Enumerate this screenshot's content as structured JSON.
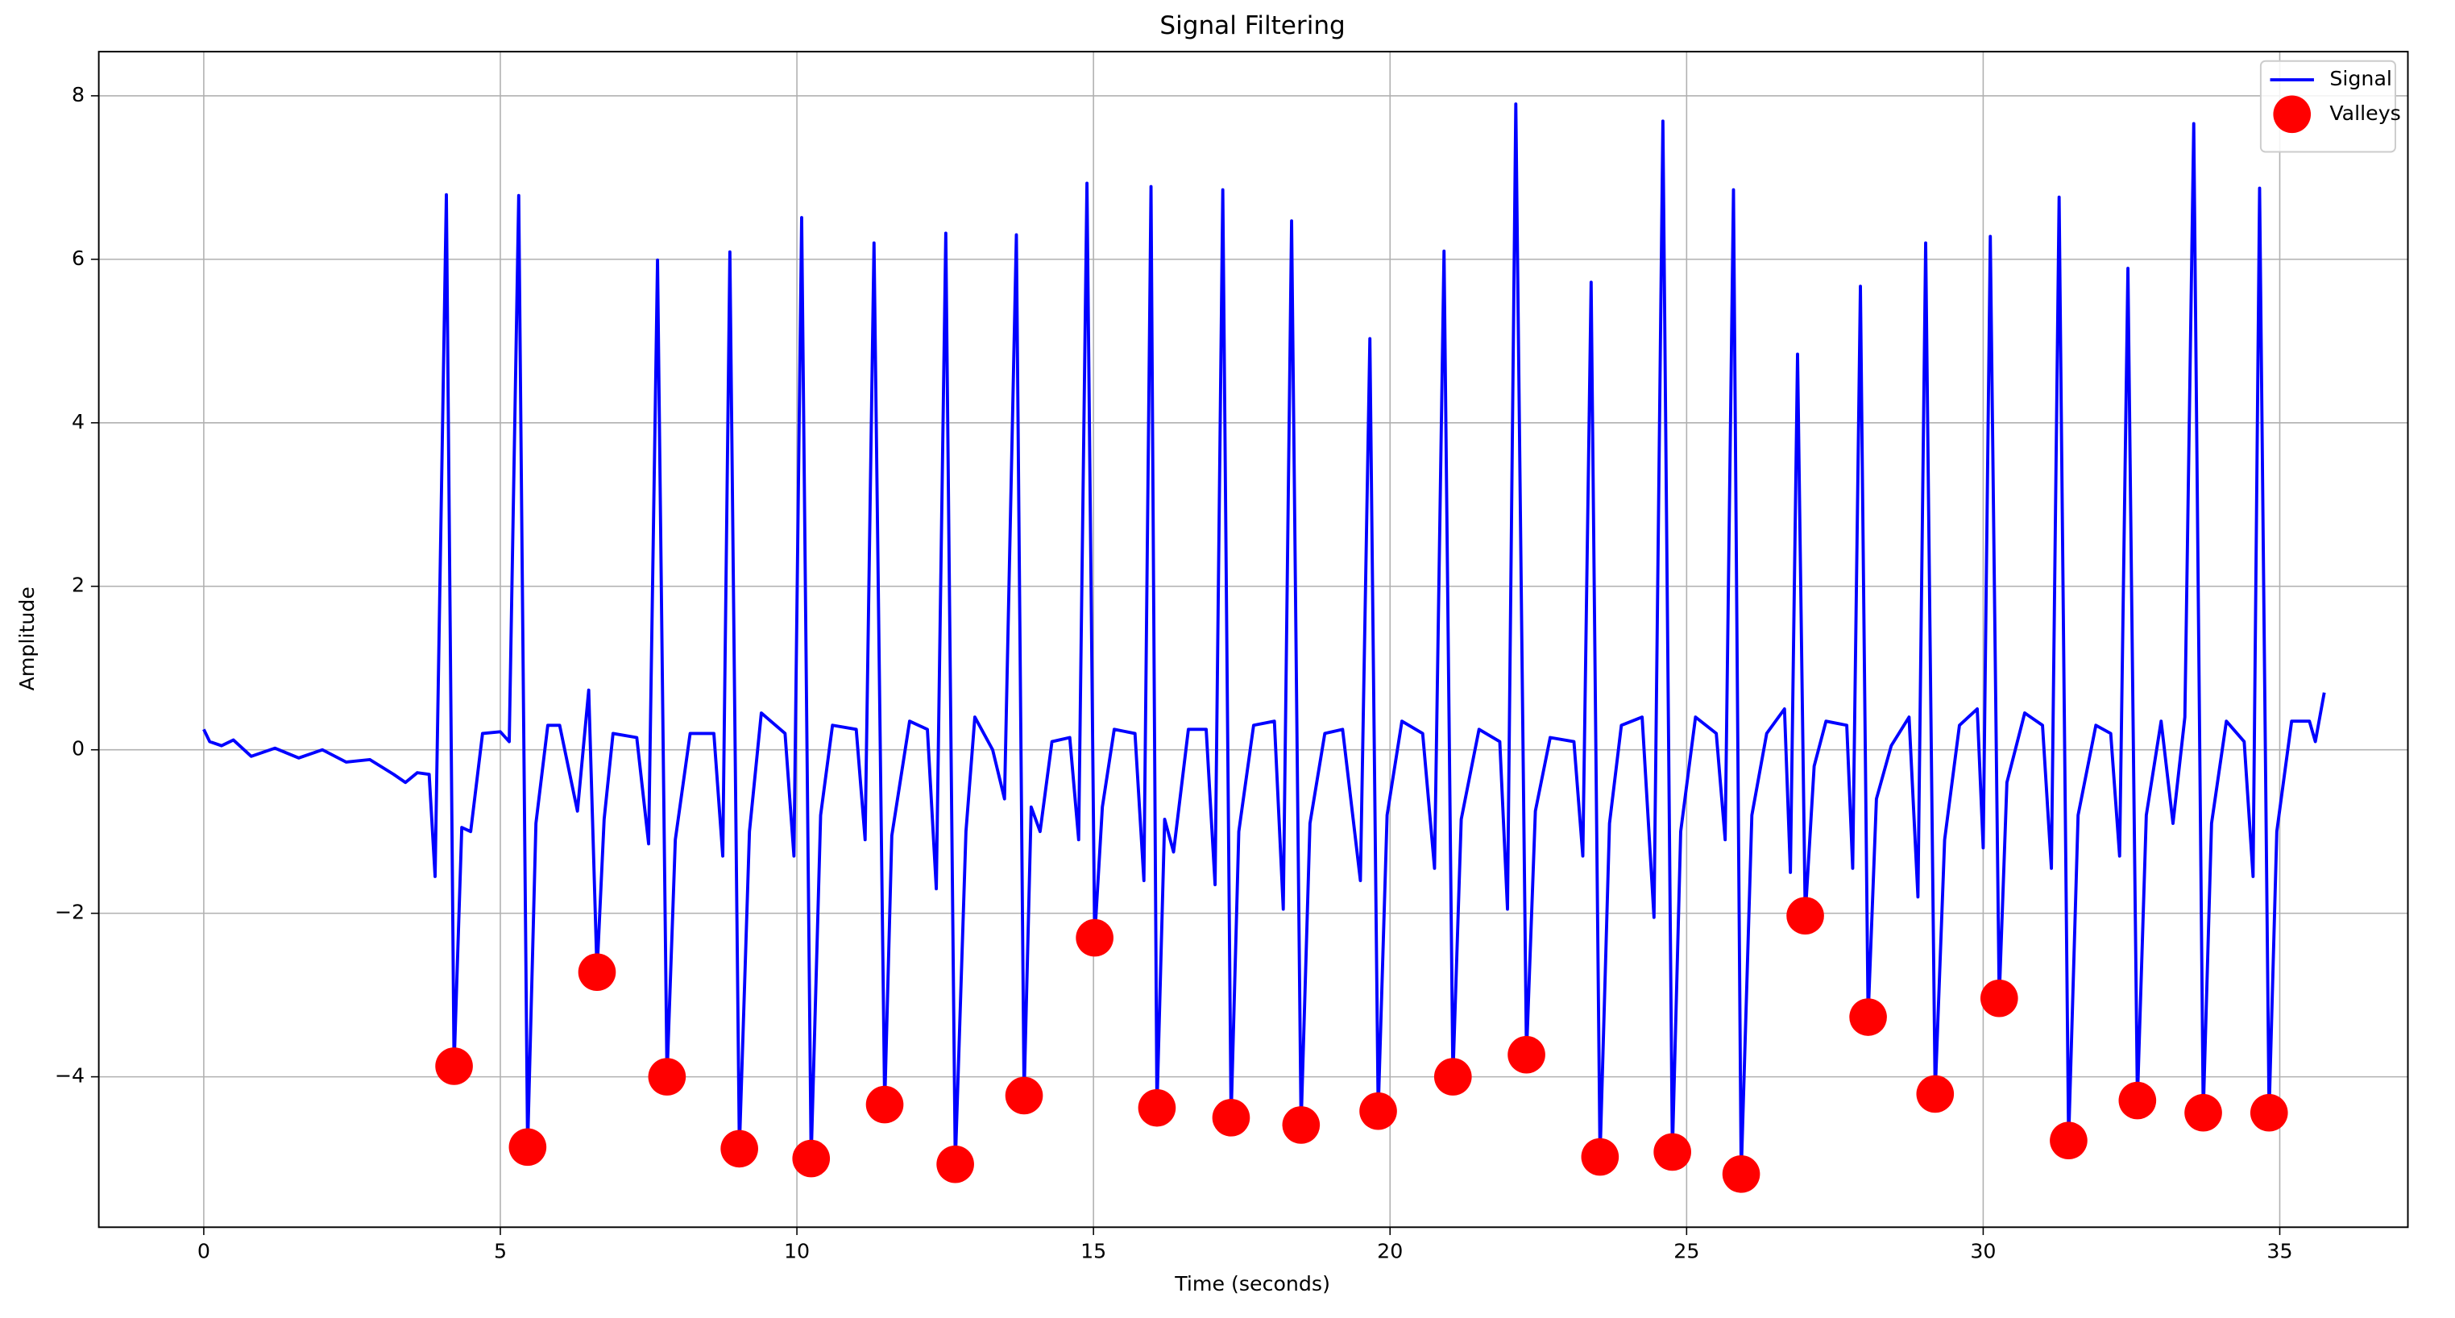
{
  "chart_data": {
    "type": "line",
    "title": "Signal Filtering",
    "x_label": "Time (seconds)",
    "y_label": "Amplitude",
    "xlim": [
      -1.77,
      37.16
    ],
    "ylim": [
      -5.84,
      8.54
    ],
    "xticks": [
      0,
      5,
      10,
      15,
      20,
      25,
      30,
      35
    ],
    "yticks": [
      {
        "value": -4,
        "label": "−4"
      },
      {
        "value": -2,
        "label": "−2"
      },
      0,
      2,
      4,
      6,
      8
    ],
    "grid": true,
    "legend": "upper right",
    "series": [
      {
        "name": "Signal",
        "type": "line",
        "color": "#0000ff",
        "x": [
          0,
          0.1,
          0.3,
          0.5,
          0.8,
          1.2,
          1.6,
          2.0,
          2.4,
          2.8,
          3.2,
          3.4,
          3.6,
          3.8,
          3.9,
          4.09,
          4.22,
          4.35,
          4.5,
          4.7,
          5.0,
          5.15,
          5.31,
          5.46,
          5.6,
          5.8,
          6.0,
          6.3,
          6.49,
          6.63,
          6.75,
          6.9,
          7.3,
          7.5,
          7.65,
          7.81,
          7.95,
          8.2,
          8.6,
          8.75,
          8.87,
          9.03,
          9.2,
          9.4,
          9.8,
          9.95,
          10.08,
          10.24,
          10.4,
          10.6,
          11.0,
          11.15,
          11.3,
          11.48,
          11.6,
          11.9,
          12.2,
          12.35,
          12.51,
          12.67,
          12.85,
          13.0,
          13.3,
          13.5,
          13.7,
          13.83,
          13.95,
          14.1,
          14.3,
          14.6,
          14.75,
          14.89,
          15.02,
          15.15,
          15.35,
          15.7,
          15.85,
          15.97,
          16.07,
          16.2,
          16.35,
          16.6,
          16.9,
          17.05,
          17.18,
          17.32,
          17.45,
          17.7,
          18.05,
          18.2,
          18.34,
          18.5,
          18.65,
          18.9,
          19.2,
          19.5,
          19.66,
          19.8,
          19.95,
          20.2,
          20.55,
          20.75,
          20.91,
          21.06,
          21.2,
          21.5,
          21.85,
          21.98,
          22.12,
          22.3,
          22.45,
          22.7,
          23.1,
          23.25,
          23.39,
          23.54,
          23.7,
          23.9,
          24.25,
          24.45,
          24.6,
          24.76,
          24.9,
          25.15,
          25.5,
          25.65,
          25.79,
          25.92,
          26.1,
          26.35,
          26.65,
          26.75,
          26.87,
          27.0,
          27.15,
          27.35,
          27.7,
          27.8,
          27.93,
          28.06,
          28.2,
          28.45,
          28.75,
          28.9,
          29.03,
          29.19,
          29.35,
          29.6,
          29.9,
          30.0,
          30.12,
          30.27,
          30.4,
          30.7,
          31.0,
          31.15,
          31.28,
          31.44,
          31.6,
          31.9,
          32.15,
          32.3,
          32.44,
          32.6,
          32.75,
          33.0,
          33.2,
          33.4,
          33.55,
          33.71,
          33.85,
          34.1,
          34.4,
          34.55,
          34.66,
          34.82,
          34.95,
          35.2,
          35.5,
          35.6,
          35.75
        ],
        "values": [
          0.25,
          0.1,
          0.05,
          0.12,
          -0.08,
          0.02,
          -0.1,
          0.0,
          -0.15,
          -0.12,
          -0.3,
          -0.4,
          -0.28,
          -0.3,
          -1.55,
          6.79,
          -3.87,
          -0.95,
          -1.0,
          0.2,
          0.22,
          0.1,
          6.78,
          -4.86,
          -0.9,
          0.3,
          0.3,
          -0.75,
          0.73,
          -2.72,
          -0.85,
          0.2,
          0.15,
          -1.15,
          5.99,
          -4.0,
          -1.1,
          0.2,
          0.2,
          -1.3,
          6.09,
          -4.88,
          -1.0,
          0.45,
          0.2,
          -1.3,
          6.51,
          -5.0,
          -0.8,
          0.3,
          0.25,
          -1.1,
          6.2,
          -4.34,
          -1.05,
          0.35,
          0.25,
          -1.7,
          6.32,
          -5.07,
          -1.0,
          0.4,
          0.0,
          -0.6,
          6.3,
          -4.23,
          -0.7,
          -1.0,
          0.1,
          0.15,
          -1.1,
          6.93,
          -2.3,
          -0.7,
          0.25,
          0.2,
          -1.6,
          6.89,
          -4.38,
          -0.85,
          -1.25,
          0.25,
          0.25,
          -1.65,
          6.85,
          -4.5,
          -1.0,
          0.3,
          0.35,
          -1.95,
          6.47,
          -4.59,
          -0.9,
          0.2,
          0.25,
          -1.6,
          5.03,
          -4.42,
          -0.8,
          0.35,
          0.2,
          -1.45,
          6.1,
          -4.0,
          -0.85,
          0.25,
          0.1,
          -1.95,
          7.9,
          -3.73,
          -0.75,
          0.15,
          0.1,
          -1.3,
          5.72,
          -4.98,
          -0.9,
          0.3,
          0.4,
          -2.05,
          7.69,
          -4.92,
          -1.0,
          0.4,
          0.2,
          -1.1,
          6.85,
          -5.19,
          -0.8,
          0.2,
          0.5,
          -1.5,
          4.84,
          -2.03,
          -0.2,
          0.35,
          0.3,
          -1.45,
          5.67,
          -3.27,
          -0.6,
          0.05,
          0.4,
          -1.8,
          6.2,
          -4.21,
          -1.1,
          0.3,
          0.5,
          -1.2,
          6.28,
          -3.04,
          -0.4,
          0.45,
          0.3,
          -1.45,
          6.76,
          -4.78,
          -0.8,
          0.3,
          0.2,
          -1.3,
          5.89,
          -4.29,
          -0.8,
          0.35,
          -0.9,
          0.4,
          7.66,
          -4.44,
          -0.9,
          0.35,
          0.1,
          -1.55,
          6.87,
          -4.44,
          -1.0,
          0.35,
          0.35,
          0.1,
          0.7
        ]
      },
      {
        "name": "Valleys",
        "type": "scatter",
        "color": "#ff0000",
        "x": [
          4.22,
          5.46,
          6.63,
          7.81,
          9.03,
          10.24,
          11.48,
          12.67,
          13.83,
          15.02,
          16.07,
          17.32,
          18.5,
          19.8,
          21.06,
          22.3,
          23.54,
          24.76,
          25.92,
          27.0,
          28.06,
          29.19,
          30.27,
          31.44,
          32.6,
          33.71,
          34.82
        ],
        "values": [
          -3.87,
          -4.86,
          -2.72,
          -4.0,
          -4.88,
          -5.0,
          -4.34,
          -5.07,
          -4.23,
          -2.3,
          -4.38,
          -4.5,
          -4.59,
          -4.42,
          -4.0,
          -3.73,
          -4.98,
          -4.92,
          -5.19,
          -2.03,
          -3.27,
          -4.21,
          -3.04,
          -4.78,
          -4.29,
          -4.44,
          -4.44
        ]
      }
    ]
  }
}
